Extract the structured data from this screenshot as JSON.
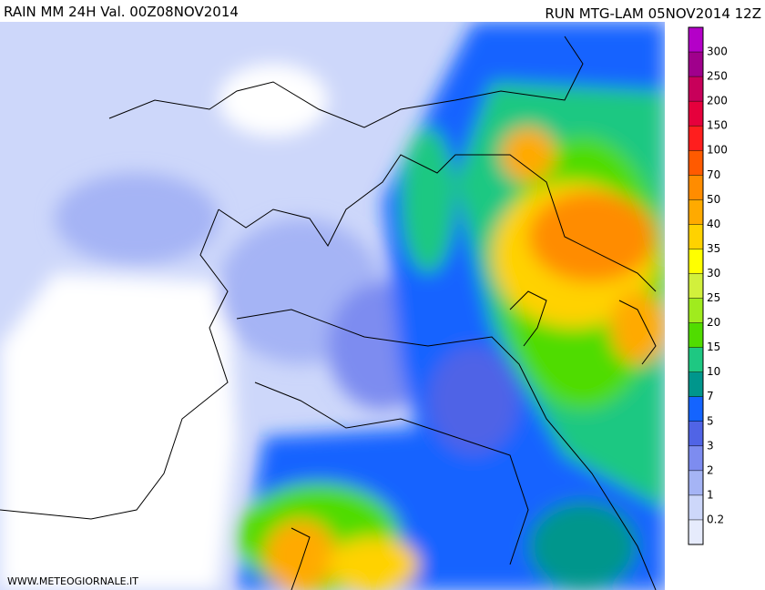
{
  "header": {
    "title": "RAIN MM 24H Val. 00Z08NOV2014",
    "run": "RUN MTG-LAM 05NOV2014 12Z"
  },
  "legend": {
    "colors": [
      "#b400c8",
      "#a0008c",
      "#c8005a",
      "#e6003c",
      "#ff1e1e",
      "#ff5a00",
      "#ff8c00",
      "#ffaa00",
      "#ffd200",
      "#ffff00",
      "#d2f03c",
      "#a0eb1e",
      "#50dc00",
      "#1ec882",
      "#00968c",
      "#1464ff",
      "#5064e6",
      "#7d8cf0",
      "#a5b4f5",
      "#cdd7fa",
      "#e6ebfc"
    ],
    "levels": [
      300,
      250,
      200,
      150,
      100,
      70,
      50,
      40,
      35,
      30,
      25,
      20,
      15,
      10,
      7,
      5,
      3,
      2,
      1,
      0.2
    ]
  },
  "footer": "WWW.METEOGIORNALE.IT"
}
